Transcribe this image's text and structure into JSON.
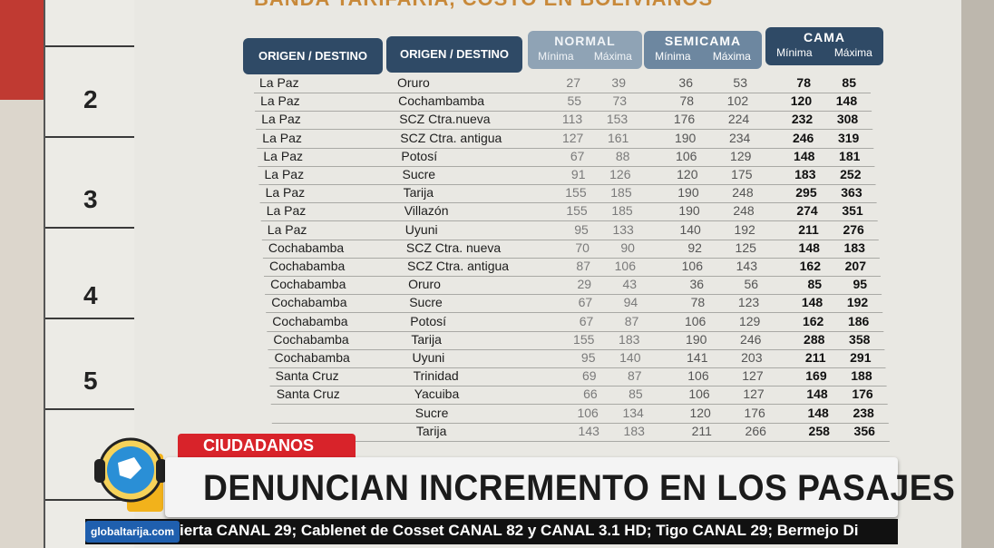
{
  "poster": {
    "title": "BANDA TARIFARIA, COSTO EN BOLIVIANOS",
    "header_origin": "ORIGEN / DESTINO",
    "header_destination": "ORIGEN / DESTINO",
    "groups": [
      {
        "name": "NORMAL",
        "min": "Mínima",
        "max": "Máxima"
      },
      {
        "name": "SEMICAMA",
        "min": "Mínima",
        "max": "Máxima"
      },
      {
        "name": "CAMA",
        "min": "Mínima",
        "max": "Máxima"
      }
    ],
    "rows": [
      {
        "o": "La Paz",
        "d": "Oruro",
        "n1": "27",
        "n2": "39",
        "s1": "36",
        "s2": "53",
        "c1": "78",
        "c2": "85"
      },
      {
        "o": "La Paz",
        "d": "Cochambamba",
        "n1": "55",
        "n2": "73",
        "s1": "78",
        "s2": "102",
        "c1": "120",
        "c2": "148"
      },
      {
        "o": "La Paz",
        "d": "SCZ Ctra.nueva",
        "n1": "113",
        "n2": "153",
        "s1": "176",
        "s2": "224",
        "c1": "232",
        "c2": "308"
      },
      {
        "o": "La Paz",
        "d": "SCZ Ctra. antigua",
        "n1": "127",
        "n2": "161",
        "s1": "190",
        "s2": "234",
        "c1": "246",
        "c2": "319"
      },
      {
        "o": "La Paz",
        "d": "Potosí",
        "n1": "67",
        "n2": "88",
        "s1": "106",
        "s2": "129",
        "c1": "148",
        "c2": "181"
      },
      {
        "o": "La Paz",
        "d": "Sucre",
        "n1": "91",
        "n2": "126",
        "s1": "120",
        "s2": "175",
        "c1": "183",
        "c2": "252"
      },
      {
        "o": "La Paz",
        "d": "Tarija",
        "n1": "155",
        "n2": "185",
        "s1": "190",
        "s2": "248",
        "c1": "295",
        "c2": "363"
      },
      {
        "o": "La Paz",
        "d": "Villazón",
        "n1": "155",
        "n2": "185",
        "s1": "190",
        "s2": "248",
        "c1": "274",
        "c2": "351"
      },
      {
        "o": "La Paz",
        "d": "Uyuni",
        "n1": "95",
        "n2": "133",
        "s1": "140",
        "s2": "192",
        "c1": "211",
        "c2": "276"
      },
      {
        "o": "Cochabamba",
        "d": "SCZ Ctra. nueva",
        "n1": "70",
        "n2": "90",
        "s1": "92",
        "s2": "125",
        "c1": "148",
        "c2": "183"
      },
      {
        "o": "Cochabamba",
        "d": "SCZ Ctra. antigua",
        "n1": "87",
        "n2": "106",
        "s1": "106",
        "s2": "143",
        "c1": "162",
        "c2": "207"
      },
      {
        "o": "Cochabamba",
        "d": "Oruro",
        "n1": "29",
        "n2": "43",
        "s1": "36",
        "s2": "56",
        "c1": "85",
        "c2": "95"
      },
      {
        "o": "Cochabamba",
        "d": "Sucre",
        "n1": "67",
        "n2": "94",
        "s1": "78",
        "s2": "123",
        "c1": "148",
        "c2": "192"
      },
      {
        "o": "Cochabamba",
        "d": "Potosí",
        "n1": "67",
        "n2": "87",
        "s1": "106",
        "s2": "129",
        "c1": "162",
        "c2": "186"
      },
      {
        "o": "Cochabamba",
        "d": "Tarija",
        "n1": "155",
        "n2": "183",
        "s1": "190",
        "s2": "246",
        "c1": "288",
        "c2": "358"
      },
      {
        "o": "Cochabamba",
        "d": "Uyuni",
        "n1": "95",
        "n2": "140",
        "s1": "141",
        "s2": "203",
        "c1": "211",
        "c2": "291"
      },
      {
        "o": "Santa Cruz",
        "d": "Trinidad",
        "n1": "69",
        "n2": "87",
        "s1": "106",
        "s2": "127",
        "c1": "169",
        "c2": "188"
      },
      {
        "o": "Santa Cruz",
        "d": "Yacuiba",
        "n1": "66",
        "n2": "85",
        "s1": "106",
        "s2": "127",
        "c1": "148",
        "c2": "176"
      },
      {
        "o": "",
        "d": "Sucre",
        "n1": "106",
        "n2": "134",
        "s1": "120",
        "s2": "176",
        "c1": "148",
        "c2": "238"
      },
      {
        "o": "",
        "d": "Tarija",
        "n1": "143",
        "n2": "183",
        "s1": "211",
        "s2": "266",
        "c1": "258",
        "c2": "356"
      }
    ]
  },
  "ruler": [
    "2",
    "3",
    "4",
    "5"
  ],
  "lower_third": {
    "tag": "CIUDADANOS",
    "headline": "DENUNCIAN INCREMENTO EN LOS PASAJES",
    "site": "globaltarija.com",
    "ticker": "ierta CANAL 29; Cablenet de Cosset CANAL 82 y CANAL 3.1 HD; Tigo CANAL 29; Bermejo Di"
  },
  "colors": {
    "header_dark": "#2f4a66",
    "tag_red": "#d8232a",
    "site_blue": "#1f5fae"
  }
}
